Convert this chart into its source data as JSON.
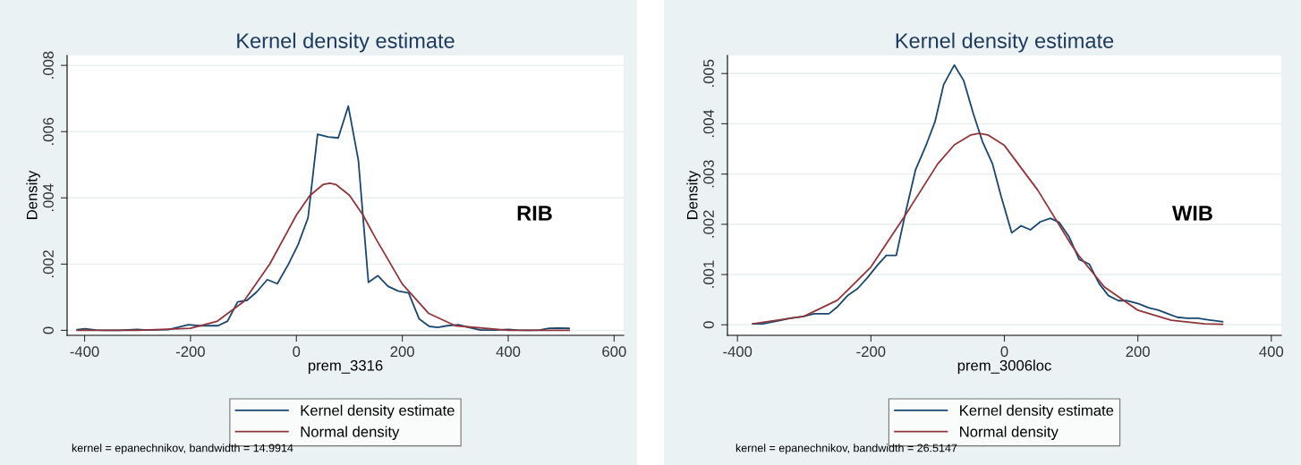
{
  "chart_data": [
    {
      "type": "line",
      "title": "Kernel density estimate",
      "xlabel": "prem_3316",
      "ylabel": "Density",
      "xlim": [
        -433,
        618
      ],
      "ylim": [
        -0.00015,
        0.0083
      ],
      "xticks": [
        -400,
        -200,
        0,
        200,
        400,
        600
      ],
      "yticks": [
        {
          "value": 0,
          "label": "0"
        },
        {
          "value": 0.002,
          "label": ".002"
        },
        {
          "value": 0.004,
          "label": ".004"
        },
        {
          "value": 0.006,
          "label": ".006"
        },
        {
          "value": 0.008,
          "label": ".008"
        }
      ],
      "grid": "y",
      "legend": "bottom",
      "marker": "none",
      "line_style": "solid",
      "annotations": [
        "RIB",
        "kernel = epanechnikov, bandwidth = 14.9914"
      ],
      "series": [
        {
          "name": "Kernel density estimate",
          "color": "#1a476f",
          "x": [
            -414,
            -399,
            -378,
            -357,
            -336,
            -301,
            -281,
            -242,
            -204,
            -183,
            -148,
            -130,
            -111,
            -93,
            -75,
            -55,
            -36,
            -15,
            3,
            22,
            40,
            60,
            79,
            98,
            117,
            136,
            154,
            173,
            192,
            212,
            232,
            251,
            267,
            285,
            306,
            327,
            348,
            375,
            400,
            417,
            438,
            459,
            477,
            495,
            515
          ],
          "values": [
            2e-05,
            5e-05,
            1e-05,
            0,
            0,
            3e-05,
            1e-05,
            2e-05,
            0.00017,
            0.00014,
            0.00014,
            0.00028,
            0.00086,
            0.00091,
            0.00116,
            0.00153,
            0.00141,
            0.002,
            0.00258,
            0.0034,
            0.00592,
            0.00584,
            0.00581,
            0.00677,
            0.00514,
            0.00145,
            0.00165,
            0.00133,
            0.00119,
            0.00113,
            0.00034,
            0.00012,
            9e-05,
            0.00014,
            0.00017,
            8e-05,
            1e-05,
            1e-05,
            3e-05,
            1e-05,
            0,
            1e-05,
            6e-05,
            7e-05,
            6e-05
          ]
        },
        {
          "name": "Normal density",
          "color": "#90353b",
          "x": [
            -414,
            -300,
            -200,
            -150,
            -100,
            -50,
            -15,
            0,
            25,
            50,
            63,
            75,
            100,
            125,
            150,
            200,
            250,
            300,
            400,
            515
          ],
          "values": [
            0,
            0,
            6e-05,
            0.00027,
            0.00086,
            0.00201,
            0.00304,
            0.00348,
            0.00406,
            0.0044,
            0.00444,
            0.0044,
            0.00408,
            0.0035,
            0.00277,
            0.0014,
            0.00051,
            0.00014,
            0,
            0
          ]
        }
      ]
    },
    {
      "type": "line",
      "title": "Kernel density estimate",
      "xlabel": "prem_3006loc",
      "ylabel": "Density",
      "xlim": [
        -415,
        415
      ],
      "ylim": [
        -0.00021,
        0.00536
      ],
      "xticks": [
        -400,
        -200,
        0,
        200,
        400
      ],
      "yticks": [
        {
          "value": 0,
          "label": "0"
        },
        {
          "value": 0.001,
          "label": ".001"
        },
        {
          "value": 0.002,
          "label": ".002"
        },
        {
          "value": 0.003,
          "label": ".003"
        },
        {
          "value": 0.004,
          "label": ".004"
        },
        {
          "value": 0.005,
          "label": ".005"
        }
      ],
      "grid": "y",
      "legend": "bottom",
      "marker": "none",
      "line_style": "solid",
      "annotations": [
        "WIB",
        "kernel = epanechnikov, bandwidth = 26.5147"
      ],
      "series": [
        {
          "name": "Kernel density estimate",
          "color": "#1a476f",
          "x": [
            -377,
            -362,
            -338,
            -321,
            -303,
            -285,
            -263,
            -250,
            -235,
            -220,
            -205,
            -190,
            -177,
            -162,
            -148,
            -133,
            -118,
            -104,
            -91,
            -75,
            -61,
            -47,
            -33,
            -18,
            -5,
            11,
            25,
            39,
            54,
            69,
            82,
            97,
            112,
            127,
            142,
            156,
            171,
            183,
            201,
            216,
            231,
            245,
            259,
            274,
            290,
            305,
            327
          ],
          "values": [
            2e-05,
            2e-05,
            8e-05,
            0.00013,
            0.00016,
            0.00022,
            0.00022,
            0.00036,
            0.00058,
            0.00072,
            0.00094,
            0.00119,
            0.00138,
            0.00138,
            0.00224,
            0.00309,
            0.00355,
            0.00404,
            0.00478,
            0.00517,
            0.00486,
            0.00422,
            0.00365,
            0.00321,
            0.00256,
            0.00183,
            0.00197,
            0.00189,
            0.00205,
            0.00212,
            0.00204,
            0.00175,
            0.0013,
            0.00121,
            0.00082,
            0.00058,
            0.00048,
            0.00048,
            0.00042,
            0.00034,
            0.00029,
            0.00022,
            0.00015,
            0.00013,
            0.00013,
            0.0001,
            6e-05
          ]
        },
        {
          "name": "Normal density",
          "color": "#90353b",
          "x": [
            -377,
            -300,
            -250,
            -200,
            -150,
            -100,
            -75,
            -50,
            -38,
            -25,
            0,
            50,
            100,
            112,
            150,
            200,
            250,
            300,
            327
          ],
          "values": [
            2e-05,
            0.00017,
            0.00049,
            0.00115,
            0.00215,
            0.0032,
            0.00358,
            0.00378,
            0.00381,
            0.00378,
            0.00357,
            0.00268,
            0.0016,
            0.00137,
            0.00075,
            0.00029,
            9e-05,
            2e-05,
            1e-05
          ]
        }
      ]
    }
  ]
}
